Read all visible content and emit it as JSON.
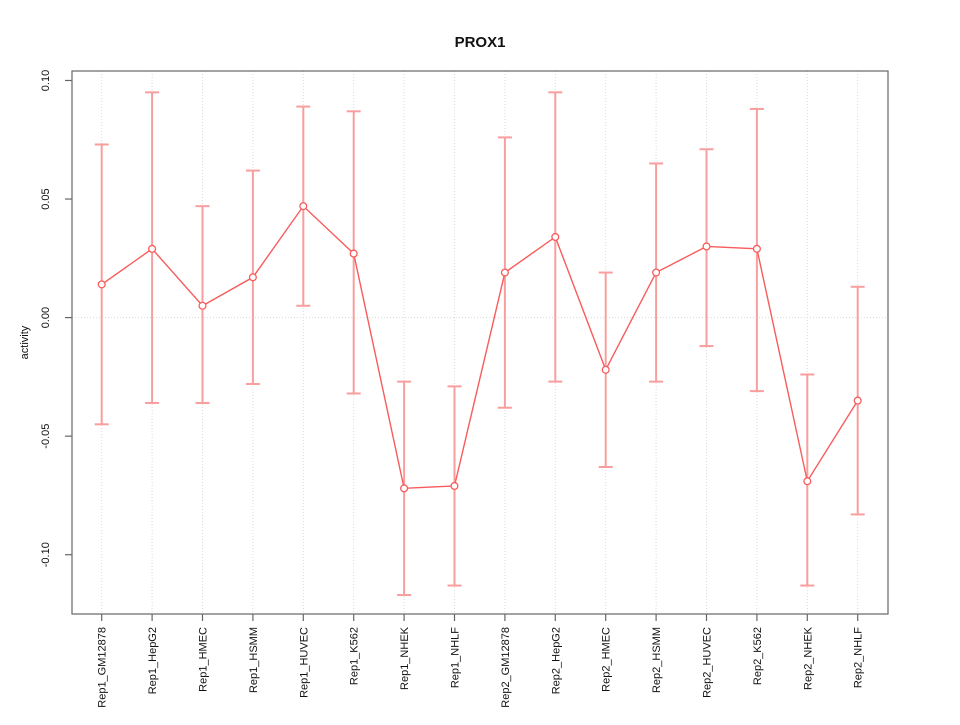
{
  "figure": {
    "background": "#ffffff",
    "axis_color": "#666666",
    "grid_color": "#d9d9d9",
    "tick_text_color": "#111111"
  },
  "chart_data": {
    "type": "line",
    "title": "PROX1",
    "xlabel": "",
    "ylabel": "activity",
    "legend": "none",
    "grid": "dotted vertical line at each category; dotted horizontal line at y=0",
    "point_style": "open-circle",
    "line_color": "#f85c5c",
    "errorbar_color": "#f99e9e",
    "ylim": [
      -0.125,
      0.104
    ],
    "yticks": [
      {
        "value": 0.1,
        "label": "0.10"
      },
      {
        "value": 0.05,
        "label": "0.05"
      },
      {
        "value": 0.0,
        "label": "0.00"
      },
      {
        "value": -0.05,
        "label": "-0.05"
      },
      {
        "value": -0.1,
        "label": "-0.10"
      }
    ],
    "categories": [
      "Rep1_GM12878",
      "Rep1_HepG2",
      "Rep1_HMEC",
      "Rep1_HSMM",
      "Rep1_HUVEC",
      "Rep1_K562",
      "Rep1_NHEK",
      "Rep1_NHLF",
      "Rep2_GM12878",
      "Rep2_HepG2",
      "Rep2_HMEC",
      "Rep2_HSMM",
      "Rep2_HUVEC",
      "Rep2_K562",
      "Rep2_NHEK",
      "Rep2_NHLF"
    ],
    "series": [
      {
        "name": "activity",
        "values": [
          0.014,
          0.029,
          0.005,
          0.017,
          0.047,
          0.027,
          -0.072,
          -0.071,
          0.019,
          0.034,
          -0.022,
          0.019,
          0.03,
          0.029,
          -0.069,
          -0.035
        ],
        "error_high": [
          0.073,
          0.095,
          0.047,
          0.062,
          0.089,
          0.087,
          -0.027,
          -0.029,
          0.076,
          0.095,
          0.019,
          0.065,
          0.071,
          0.088,
          -0.024,
          0.013
        ],
        "error_low": [
          -0.045,
          -0.036,
          -0.036,
          -0.028,
          0.005,
          -0.032,
          -0.117,
          -0.113,
          -0.038,
          -0.027,
          -0.063,
          -0.027,
          -0.012,
          -0.031,
          -0.113,
          -0.083
        ]
      }
    ]
  }
}
